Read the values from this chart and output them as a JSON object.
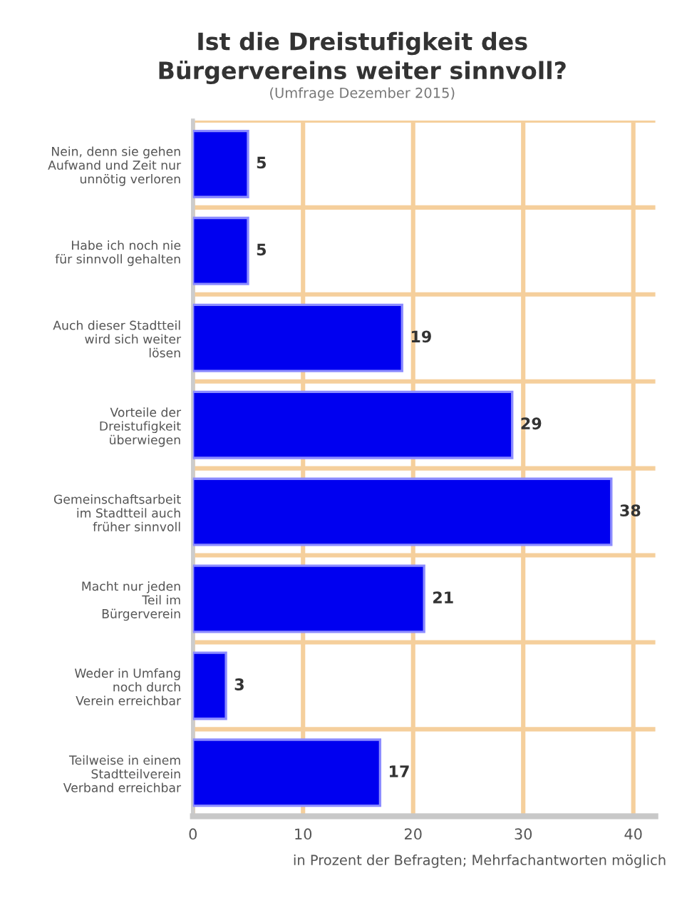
{
  "chart_data": {
    "type": "bar",
    "orientation": "horizontal",
    "title": "Ist die Dreistufigkeit des\nBürgervereins weiter sinnvoll?",
    "subtitle": "(Umfrage Dezember 2015)",
    "xlabel": "in Prozent der Befragten; Mehrfachantworten möglich",
    "categories": [
      "Nein, denn sie gehen\nAufwand und Zeit nur\nunnötig verloren",
      "Habe ich noch nie\nfür sinnvoll gehalten",
      "Auch dieser Stadtteil\nwird sich weiter\nlösen",
      "Vorteile der\nDreistufigkeit\nüberwiegen",
      "Gemeinschaftsarbeit\nim Stadtteil auch\nfrüher sinnvoll",
      "Macht nur jeden\nTeil im\nBürgerverein",
      "Weder in Umfang\nnoch durch\nVerein erreichbar",
      "Teilweise in einem\nStadtteilverein\nVerband erreichbar"
    ],
    "values": [
      5,
      5,
      19,
      29,
      38,
      21,
      3,
      17
    ],
    "color": "#0000f0",
    "data_labels": true,
    "xlim": [
      0,
      42
    ],
    "xticks": [
      0,
      10,
      20,
      30,
      40
    ],
    "grid": true
  }
}
